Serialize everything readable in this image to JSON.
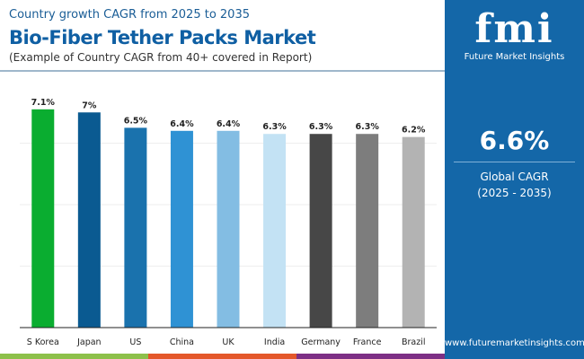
{
  "header": {
    "subtitle": "Country growth CAGR from 2025 to 2035",
    "title": "Bio-Fiber Tether Packs Market",
    "note": "(Example of Country CAGR from 40+ covered in Report)"
  },
  "panel": {
    "logo_text": "fmi",
    "brand": "Future Market Insights",
    "global_cagr": "6.6%",
    "global_label": "Global CAGR",
    "global_period": "(2025 - 2035)",
    "website": "www.futuremarketinsights.com",
    "background": "#1467a8"
  },
  "chart_data": {
    "type": "bar",
    "categories": [
      "S Korea",
      "Japan",
      "US",
      "China",
      "UK",
      "India",
      "Germany",
      "France",
      "Brazil"
    ],
    "values": [
      7.1,
      7.0,
      6.5,
      6.4,
      6.4,
      6.3,
      6.3,
      6.3,
      6.2
    ],
    "labels": [
      "7.1%",
      "7%",
      "6.5%",
      "6.4%",
      "6.4%",
      "6.3%",
      "6.3%",
      "6.3%",
      "6.2%"
    ],
    "colors": [
      "#0aad30",
      "#0a5a91",
      "#1a72ad",
      "#2f92d4",
      "#83bde3",
      "#c3e2f4",
      "#474747",
      "#7d7d7d",
      "#b3b3b3"
    ],
    "ylim": [
      0,
      8
    ],
    "grid": true,
    "title": "",
    "xlabel": "",
    "ylabel": ""
  },
  "footer": {
    "strip_colors": [
      "#8dc04a",
      "#e4572a",
      "#7d2f85"
    ]
  }
}
